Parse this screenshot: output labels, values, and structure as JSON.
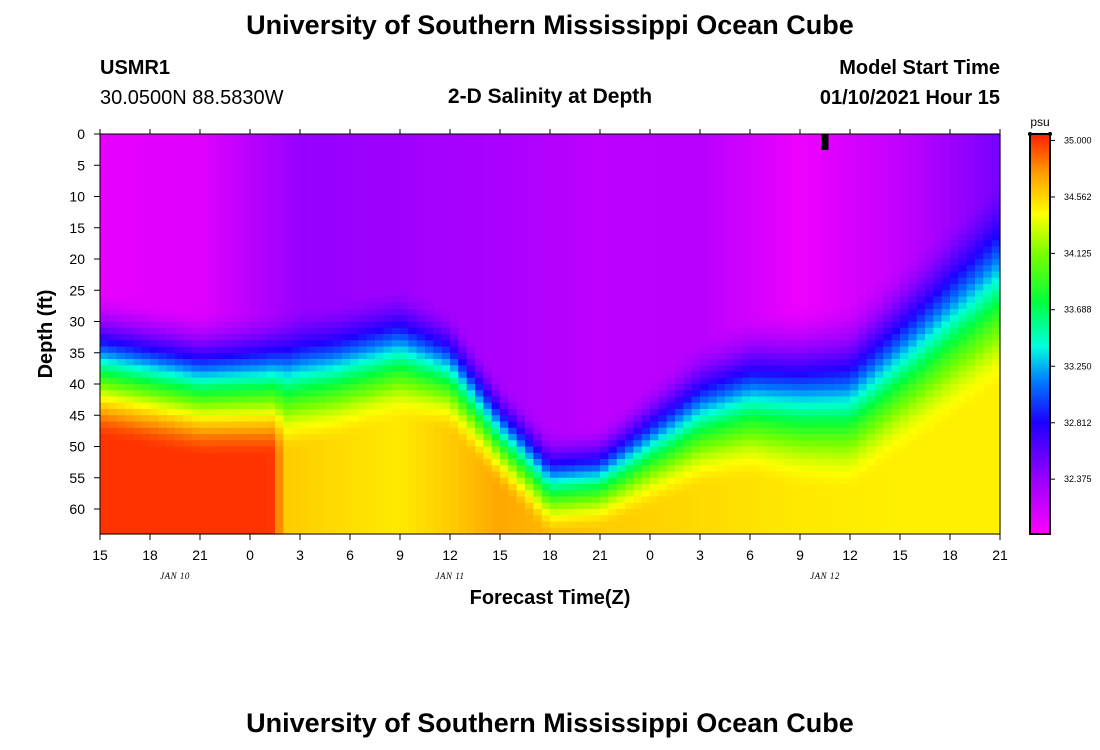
{
  "header": {
    "title": "University of Southern Mississippi Ocean Cube",
    "station_id": "USMR1",
    "station_coords": "30.0500N 88.5830W",
    "plot_title": "2-D Salinity at Depth",
    "model_label": "Model Start Time",
    "model_time": "01/10/2021 Hour 15"
  },
  "footer": {
    "title": "University of Southern Mississippi Ocean Cube"
  },
  "chart_data": {
    "type": "heatmap",
    "title": "2-D Salinity at Depth",
    "xlabel": "Forecast Time(Z)",
    "ylabel": "Depth (ft)",
    "x_tick_labels": [
      "15",
      "18",
      "21",
      "0",
      "3",
      "6",
      "9",
      "12",
      "15",
      "18",
      "21",
      "0",
      "3",
      "6",
      "9",
      "12",
      "15",
      "18",
      "21"
    ],
    "x_range_hours": [
      0,
      54
    ],
    "date_labels": [
      {
        "label": "JAN 10",
        "hour": 4.5
      },
      {
        "label": "JAN 11",
        "hour": 21
      },
      {
        "label": "JAN 12",
        "hour": 43.5
      }
    ],
    "y_tick_labels": [
      "0",
      "5",
      "10",
      "15",
      "20",
      "25",
      "30",
      "35",
      "40",
      "45",
      "50",
      "55",
      "60"
    ],
    "ylim": [
      0,
      64
    ],
    "current_time_marker_hour": 43.5,
    "colorbar": {
      "unit": "psu",
      "vmin": 31.95,
      "vmax": 35.05,
      "tick_labels": [
        "35.000",
        "34.562",
        "34.125",
        "33.688",
        "33.250",
        "32.812",
        "32.375"
      ],
      "tick_values": [
        35.0,
        34.562,
        34.125,
        33.688,
        33.25,
        32.812,
        32.375
      ]
    },
    "halocline_depth_ft": {
      "hours": [
        0,
        6,
        10,
        14,
        18,
        21,
        24,
        27,
        30,
        33,
        36,
        39,
        42,
        45,
        48,
        51,
        54
      ],
      "depths": [
        37,
        40,
        40,
        38,
        35,
        38,
        48,
        56,
        55,
        50,
        45,
        42,
        42,
        42,
        36,
        30,
        24
      ]
    },
    "halocline_thickness_ft": {
      "hours": [
        0,
        10,
        18,
        24,
        30,
        36,
        42,
        48,
        54
      ],
      "values": [
        24,
        24,
        22,
        18,
        17,
        24,
        30,
        32,
        34
      ]
    },
    "surface_salinity_psu": {
      "hours": [
        0,
        6,
        12,
        18,
        24,
        30,
        36,
        42,
        48,
        54
      ],
      "values": [
        32.05,
        32.08,
        32.38,
        32.35,
        32.3,
        32.22,
        32.25,
        32.02,
        32.2,
        32.5
      ]
    },
    "bottom_salinity_psu": {
      "hours": [
        0,
        10,
        10.5,
        11,
        14,
        18,
        21,
        24,
        30,
        36,
        42,
        48,
        54
      ],
      "values": [
        35.0,
        35.0,
        34.98,
        34.6,
        34.55,
        34.5,
        34.6,
        34.72,
        34.6,
        34.55,
        34.5,
        34.48,
        34.48
      ]
    }
  }
}
